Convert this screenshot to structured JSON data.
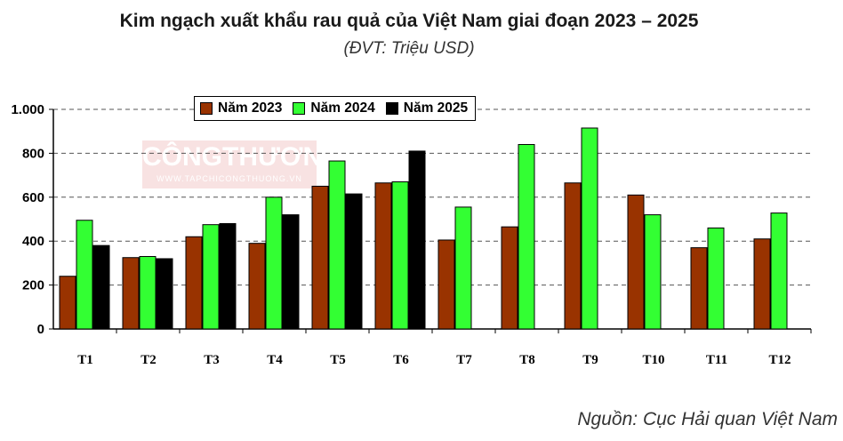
{
  "chart_data": {
    "type": "bar",
    "title": "Kim ngạch xuất khẩu rau quả của Việt Nam giai đoạn 2023 – 2025",
    "subtitle": "(ĐVT: Triệu USD)",
    "source": "Nguồn: Cục Hải quan Việt Nam",
    "watermark": {
      "main": "CÔNGTHƯƠNG",
      "sub": "WWW.TAPCHICONGTHUONG.VN"
    },
    "categories": [
      "T1",
      "T2",
      "T3",
      "T4",
      "T5",
      "T6",
      "T7",
      "T8",
      "T9",
      "T10",
      "T11",
      "T12"
    ],
    "series": [
      {
        "name": "Năm 2023",
        "color": "#993300",
        "values": [
          240,
          325,
          420,
          390,
          650,
          665,
          405,
          465,
          665,
          610,
          370,
          410
        ]
      },
      {
        "name": "Năm 2024",
        "color": "#33ff33",
        "values": [
          495,
          330,
          475,
          600,
          765,
          670,
          555,
          840,
          915,
          520,
          460,
          528
        ]
      },
      {
        "name": "Năm 2025",
        "color": "#000000",
        "values": [
          380,
          320,
          480,
          520,
          615,
          810,
          null,
          null,
          null,
          null,
          null,
          null
        ]
      }
    ],
    "ylim": [
      0,
      1000
    ],
    "yticks": [
      0,
      200,
      400,
      600,
      800,
      1000
    ],
    "ytick_labels": [
      "0",
      "200",
      "400",
      "600",
      "800",
      "1.000"
    ],
    "grid": true,
    "legend_position": "top"
  }
}
